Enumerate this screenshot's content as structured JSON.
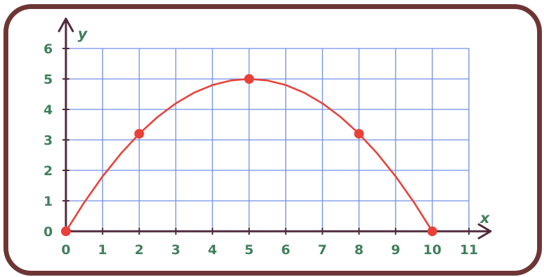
{
  "chart_data": {
    "type": "line",
    "title": "",
    "xlabel": "x",
    "ylabel": "y",
    "xlim": [
      0,
      11
    ],
    "ylim": [
      0,
      6
    ],
    "x_ticks": [
      "0",
      "1",
      "2",
      "3",
      "4",
      "5",
      "6",
      "7",
      "8",
      "9",
      "10",
      "11"
    ],
    "y_ticks": [
      "0",
      "1",
      "2",
      "3",
      "4",
      "5",
      "6"
    ],
    "grid": true,
    "series": [
      {
        "type": "line",
        "curve": "y = -0.2(x - 5)^2 + 5",
        "x": [
          0,
          0.5,
          1,
          1.5,
          2,
          2.5,
          3,
          3.5,
          4,
          4.5,
          5,
          5.5,
          6,
          6.5,
          7,
          7.5,
          8,
          8.5,
          9,
          9.5,
          10
        ],
        "y": [
          0,
          0.95,
          1.8,
          2.55,
          3.2,
          3.75,
          4.2,
          4.55,
          4.8,
          4.95,
          5,
          4.95,
          4.8,
          4.55,
          4.2,
          3.75,
          3.2,
          2.55,
          1.8,
          0.95,
          0
        ]
      },
      {
        "type": "scatter",
        "x": [
          0,
          2,
          5,
          8,
          10
        ],
        "y": [
          0,
          3.2,
          5,
          3.2,
          0
        ]
      }
    ],
    "colors": {
      "curve": "#e8413a",
      "points": "#e8413a",
      "grid": "#6f8ee8",
      "axes": "#4f2a3c",
      "labels": "#3f7f5d",
      "frame": "#6e3535"
    }
  }
}
